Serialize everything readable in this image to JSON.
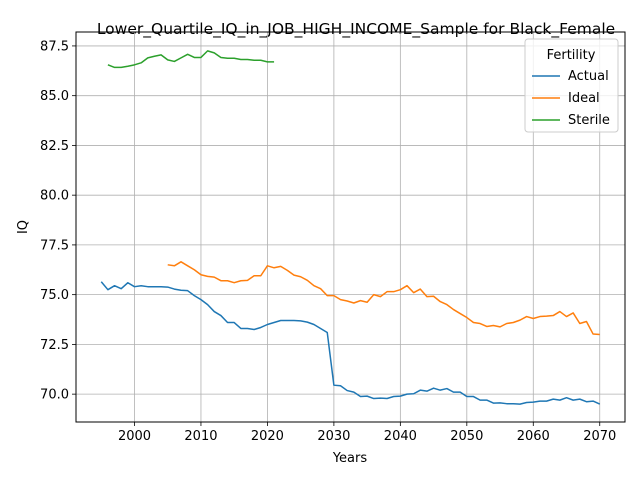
{
  "chart_data": {
    "type": "line",
    "title": "Lower_Quartile_IQ_in_JOB_HIGH_INCOME_Sample for Black_Female",
    "xlabel": "Years",
    "ylabel": "IQ",
    "xlim": [
      1991.2,
      2073.8
    ],
    "ylim": [
      68.6,
      88.2
    ],
    "xticks": [
      2000,
      2010,
      2020,
      2030,
      2040,
      2050,
      2060,
      2070
    ],
    "yticks": [
      70.0,
      72.5,
      75.0,
      77.5,
      80.0,
      82.5,
      85.0,
      87.5
    ],
    "grid": true,
    "legend": {
      "title": "Fertility",
      "position": "top-right"
    },
    "series": [
      {
        "name": "Actual",
        "color": "#1f77b4",
        "x": [
          1995,
          1996,
          1997,
          1998,
          1999,
          2000,
          2001,
          2002,
          2003,
          2004,
          2005,
          2006,
          2007,
          2008,
          2009,
          2010,
          2011,
          2012,
          2013,
          2014,
          2015,
          2016,
          2017,
          2018,
          2019,
          2020,
          2021,
          2022,
          2023,
          2024,
          2025,
          2026,
          2027,
          2028,
          2029,
          2030,
          2031,
          2032,
          2033,
          2034,
          2035,
          2036,
          2037,
          2038,
          2039,
          2040,
          2041,
          2042,
          2043,
          2044,
          2045,
          2046,
          2047,
          2048,
          2049,
          2050,
          2051,
          2052,
          2053,
          2054,
          2055,
          2056,
          2057,
          2058,
          2059,
          2060,
          2061,
          2062,
          2063,
          2064,
          2065,
          2066,
          2067,
          2068,
          2069,
          2070
        ],
        "y": [
          75.65,
          75.25,
          75.45,
          75.3,
          75.6,
          75.4,
          75.45,
          75.4,
          75.4,
          75.4,
          75.38,
          75.28,
          75.22,
          75.2,
          74.95,
          74.75,
          74.5,
          74.15,
          73.95,
          73.6,
          73.6,
          73.3,
          73.3,
          73.25,
          73.35,
          73.5,
          73.6,
          73.7,
          73.7,
          73.7,
          73.68,
          73.62,
          73.5,
          73.3,
          73.1,
          70.45,
          70.42,
          70.18,
          70.1,
          69.88,
          69.9,
          69.78,
          69.8,
          69.78,
          69.88,
          69.9,
          70.0,
          70.02,
          70.2,
          70.15,
          70.3,
          70.2,
          70.28,
          70.1,
          70.1,
          69.88,
          69.88,
          69.7,
          69.7,
          69.55,
          69.56,
          69.52,
          69.52,
          69.5,
          69.58,
          69.6,
          69.65,
          69.65,
          69.75,
          69.7,
          69.82,
          69.7,
          69.75,
          69.62,
          69.65,
          69.5
        ]
      },
      {
        "name": "Ideal",
        "color": "#ff7f0e",
        "x": [
          2005,
          2006,
          2007,
          2008,
          2009,
          2010,
          2011,
          2012,
          2013,
          2014,
          2015,
          2016,
          2017,
          2018,
          2019,
          2020,
          2021,
          2022,
          2023,
          2024,
          2025,
          2026,
          2027,
          2028,
          2029,
          2030,
          2031,
          2032,
          2033,
          2034,
          2035,
          2036,
          2037,
          2038,
          2039,
          2040,
          2041,
          2042,
          2043,
          2044,
          2045,
          2046,
          2047,
          2048,
          2049,
          2050,
          2051,
          2052,
          2053,
          2054,
          2055,
          2056,
          2057,
          2058,
          2059,
          2060,
          2061,
          2062,
          2063,
          2064,
          2065,
          2066,
          2067,
          2068,
          2069,
          2070
        ],
        "y": [
          76.5,
          76.45,
          76.65,
          76.45,
          76.25,
          76.0,
          75.92,
          75.88,
          75.7,
          75.7,
          75.6,
          75.7,
          75.72,
          75.95,
          75.95,
          76.45,
          76.35,
          76.42,
          76.22,
          75.98,
          75.9,
          75.72,
          75.45,
          75.3,
          74.95,
          74.95,
          74.75,
          74.68,
          74.58,
          74.7,
          74.62,
          75.0,
          74.9,
          75.15,
          75.15,
          75.25,
          75.45,
          75.1,
          75.28,
          74.9,
          74.92,
          74.65,
          74.5,
          74.25,
          74.05,
          73.85,
          73.6,
          73.55,
          73.4,
          73.45,
          73.38,
          73.55,
          73.6,
          73.72,
          73.9,
          73.8,
          73.9,
          73.92,
          73.95,
          74.15,
          73.9,
          74.08,
          73.55,
          73.65,
          73.02,
          73.0
        ]
      },
      {
        "name": "Sterile",
        "color": "#2ca02c",
        "x": [
          1996,
          1997,
          1998,
          1999,
          2000,
          2001,
          2002,
          2003,
          2004,
          2005,
          2006,
          2007,
          2008,
          2009,
          2010,
          2011,
          2012,
          2013,
          2014,
          2015,
          2016,
          2017,
          2018,
          2019,
          2020,
          2021
        ],
        "y": [
          86.55,
          86.42,
          86.42,
          86.48,
          86.55,
          86.65,
          86.9,
          86.98,
          87.05,
          86.8,
          86.72,
          86.9,
          87.08,
          86.92,
          86.92,
          87.25,
          87.15,
          86.92,
          86.88,
          86.88,
          86.82,
          86.82,
          86.78,
          86.78,
          86.7,
          86.7
        ]
      }
    ]
  }
}
